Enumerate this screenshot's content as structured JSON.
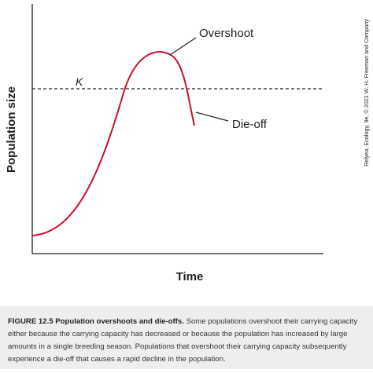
{
  "figure": {
    "y_label": "Population size",
    "x_label": "Time",
    "k_label": "K",
    "overshoot_label": "Overshoot",
    "dieoff_label": "Die-off",
    "credit": "Relyea, Ecology, 9e, © 2021 W. H. Freeman and Company"
  },
  "caption": {
    "label": "FIGURE 12.5 Population overshoots and die-offs.",
    "text": "Some populations overshoot their carrying capacity either because the carrying capacity has decreased or because the population has increased by large amounts in a single breeding season. Populations that overshoot their carrying capacity subsequently experience a die-off that causes a rapid decline in the population."
  }
}
